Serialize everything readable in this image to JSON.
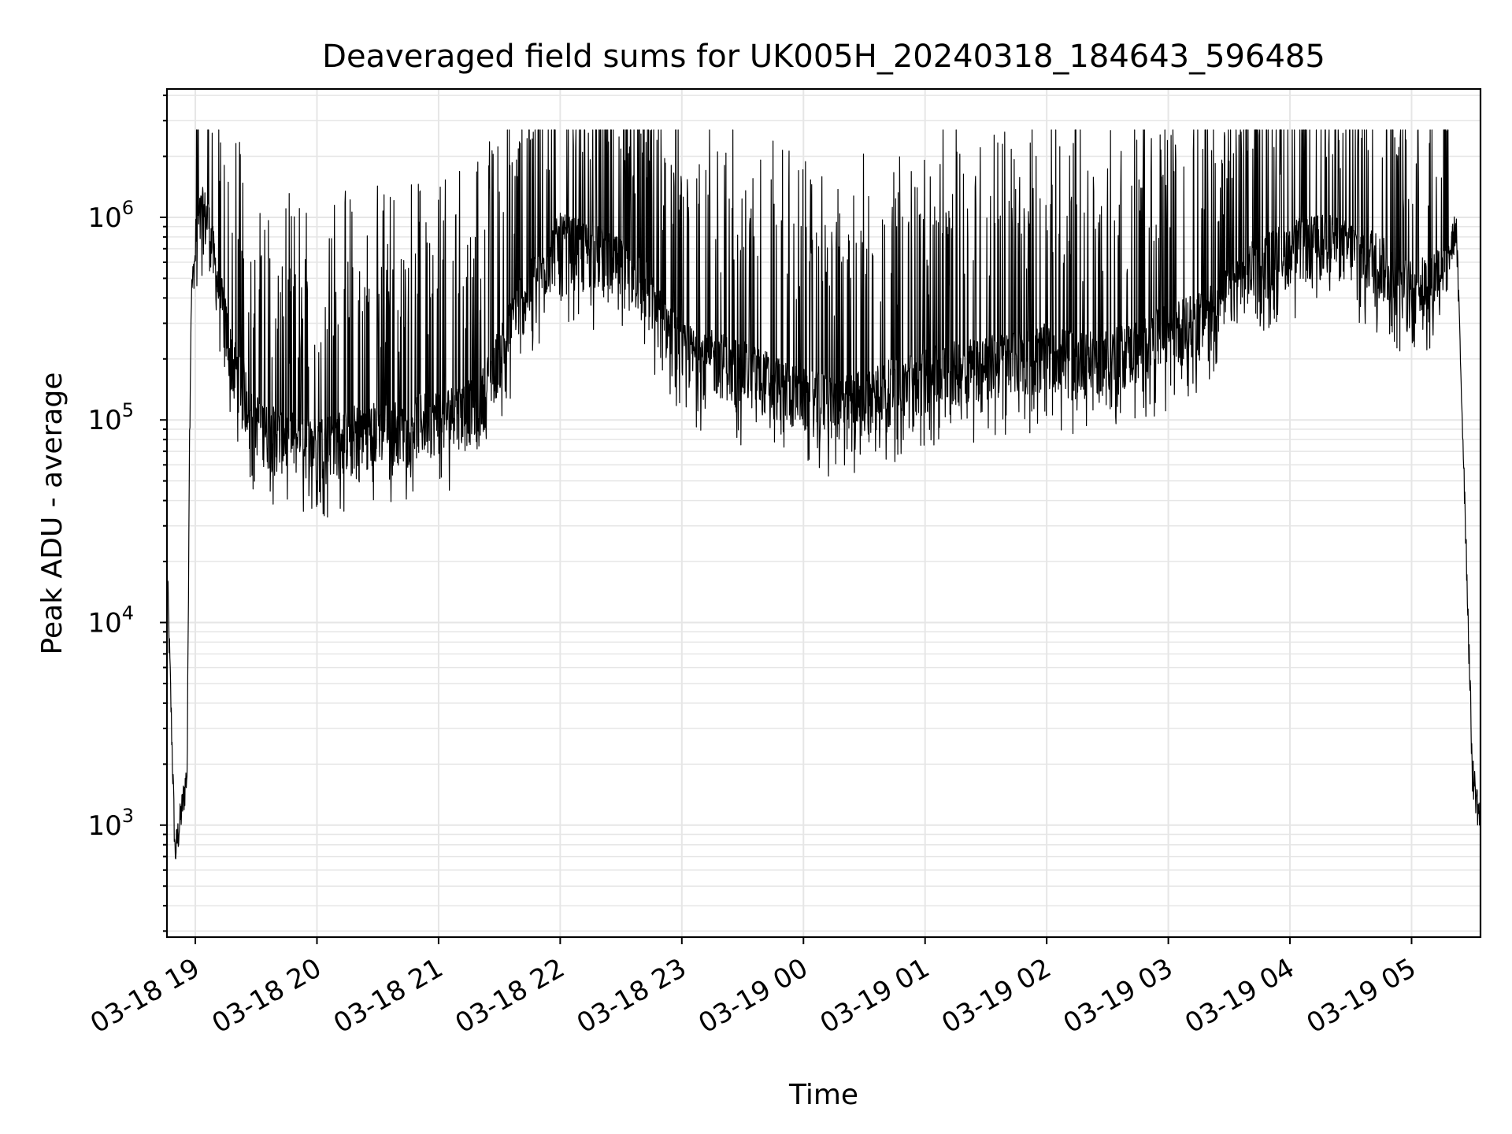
{
  "chart_data": {
    "type": "line",
    "title": "Deaveraged field sums for UK005H_20240318_184643_596485",
    "xlabel": "Time",
    "ylabel": "Peak ADU - average",
    "y_scale": "log",
    "ylim": [
      280,
      4300000
    ],
    "xlim": [
      "2024-03-18 18:46",
      "2024-03-19 05:34"
    ],
    "grid": true,
    "colors": {
      "series": "#000000",
      "grid": "#e6e6e6"
    },
    "x_ticks": [
      "03-18 19",
      "03-18 20",
      "03-18 21",
      "03-18 22",
      "03-18 23",
      "03-19 00",
      "03-19 01",
      "03-19 02",
      "03-19 03",
      "03-19 04",
      "03-19 05"
    ],
    "y_ticks": [
      {
        "value": 1000,
        "base": "10",
        "exp": "3"
      },
      {
        "value": 10000,
        "base": "10",
        "exp": "4"
      },
      {
        "value": 100000,
        "base": "10",
        "exp": "5"
      },
      {
        "value": 1000000,
        "base": "10",
        "exp": "6"
      }
    ],
    "series": [
      {
        "x": [
          "2024-03-18 18:46",
          "2024-03-18 18:50",
          "2024-03-18 18:54",
          "2024-03-18 18:56",
          "2024-03-18 18:57",
          "2024-03-18 18:58",
          "2024-03-18 19:00",
          "2024-03-18 19:03",
          "2024-03-18 19:06",
          "2024-03-18 19:10",
          "2024-03-18 19:14",
          "2024-03-18 19:18",
          "2024-03-18 19:22",
          "2024-03-18 19:28",
          "2024-03-18 19:35",
          "2024-03-18 19:45",
          "2024-03-18 20:00",
          "2024-03-18 20:20",
          "2024-03-18 20:40",
          "2024-03-18 21:00",
          "2024-03-18 21:20",
          "2024-03-18 21:40",
          "2024-03-18 22:00",
          "2024-03-18 22:20",
          "2024-03-18 22:40",
          "2024-03-18 23:00",
          "2024-03-18 23:20",
          "2024-03-18 23:40",
          "2024-03-19 00:00",
          "2024-03-19 00:20",
          "2024-03-19 00:40",
          "2024-03-19 01:00",
          "2024-03-19 01:20",
          "2024-03-19 01:40",
          "2024-03-19 02:00",
          "2024-03-19 02:20",
          "2024-03-19 02:40",
          "2024-03-19 03:00",
          "2024-03-19 03:20",
          "2024-03-19 03:40",
          "2024-03-19 04:00",
          "2024-03-19 04:20",
          "2024-03-19 04:40",
          "2024-03-19 05:00",
          "2024-03-19 05:10",
          "2024-03-19 05:18",
          "2024-03-19 05:22",
          "2024-03-19 05:26",
          "2024-03-19 05:30",
          "2024-03-19 05:34"
        ],
        "y": [
          20000,
          700,
          1300,
          1800,
          60000,
          400000,
          650000,
          950000,
          900000,
          500000,
          300000,
          180000,
          150000,
          100000,
          80000,
          75000,
          70000,
          80000,
          85000,
          95000,
          110000,
          350000,
          700000,
          600000,
          450000,
          200000,
          180000,
          150000,
          120000,
          110000,
          130000,
          150000,
          170000,
          180000,
          200000,
          180000,
          200000,
          250000,
          300000,
          500000,
          650000,
          700000,
          600000,
          400000,
          450000,
          600000,
          900000,
          50000,
          1800,
          1000
        ]
      }
    ]
  }
}
